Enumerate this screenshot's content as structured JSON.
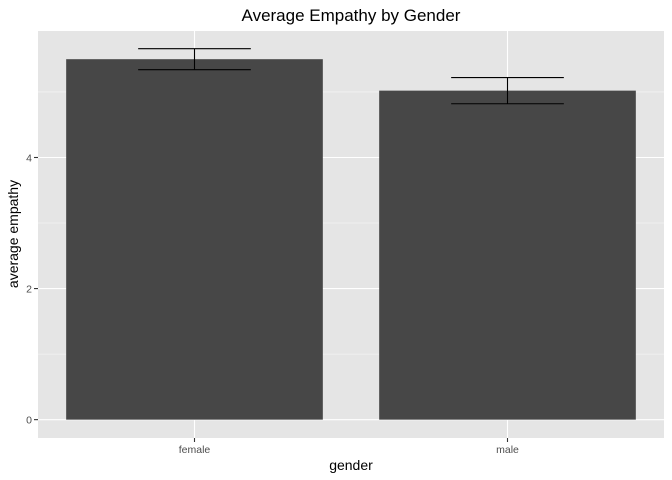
{
  "chart_data": {
    "type": "bar",
    "title": "Average Empathy by Gender",
    "xlabel": "gender",
    "ylabel": "average empathy",
    "categories": [
      "female",
      "male"
    ],
    "values": [
      5.5,
      5.02
    ],
    "error_bars": [
      {
        "lower": 5.34,
        "upper": 5.66
      },
      {
        "lower": 4.82,
        "upper": 5.22
      }
    ],
    "ylim": [
      -0.28,
      5.93
    ],
    "yticks": [
      0,
      2,
      4
    ],
    "ytick_labels": [
      "0",
      "2",
      "4"
    ],
    "grid": true,
    "legend": "none",
    "colors": {
      "bar": "#474747",
      "panel": "#e5e5e5",
      "grid_major": "#ffffff",
      "error_bar": "#000000"
    }
  }
}
